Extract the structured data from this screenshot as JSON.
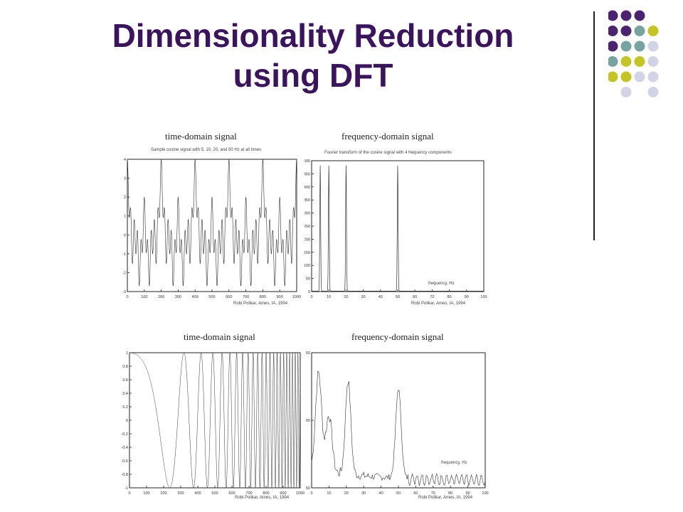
{
  "slide": {
    "title_line1": "Dimensionality Reduction",
    "title_line2": "using DFT",
    "colors": {
      "title": "#3b145e",
      "dot_purple": "#4a2470",
      "dot_teal": "#77a3a0",
      "dot_lime": "#c3c524",
      "dot_lavender": "#d3d3e6"
    }
  },
  "figures": {
    "top_left": {
      "title": "time-domain signal",
      "subtitle": "Sample cosine signal with 5, 10, 20, and 50 Hz at all times",
      "credit": "Robi Polikar, Ames, IA, 1994",
      "xticks": [
        "0",
        "100",
        "200",
        "300",
        "400",
        "500",
        "600",
        "700",
        "800",
        "900",
        "1000"
      ],
      "yticks": [
        "4",
        "3",
        "2",
        "1",
        "0",
        "-1",
        "-2",
        "-3"
      ]
    },
    "top_right": {
      "title": "frequency-domain signal",
      "subtitle": "Fourier transform of the cosine signal with 4 frequency components",
      "credit": "Robi Polikar, Ames, IA, 1994",
      "annotation": "frequency, Hz",
      "xticks": [
        "0",
        "10",
        "20",
        "30",
        "40",
        "50",
        "60",
        "70",
        "80",
        "90",
        "100"
      ],
      "yticks": [
        "500",
        "450",
        "400",
        "350",
        "300",
        "250",
        "200",
        "150",
        "100",
        "50",
        "0"
      ]
    },
    "bottom_left": {
      "title": "time-domain  signal",
      "credit": "Robi Polikar, Ames, IA, 1994",
      "xticks": [
        "0",
        "100",
        "200",
        "300",
        "400",
        "500",
        "600",
        "700",
        "800",
        "900",
        "1000"
      ],
      "yticks": [
        "1",
        "0.8",
        "0.6",
        "0.4",
        "0.2",
        "0",
        "-0.2",
        "-0.4",
        "-0.6",
        "-0.8",
        "-1"
      ]
    },
    "bottom_right": {
      "title": "frequency-domain  signal",
      "credit": "Robi Polikar, Ames, IA, 1994",
      "annotation": "frequency, Hz",
      "xticks": [
        "0",
        "10",
        "20",
        "30",
        "40",
        "50",
        "60",
        "70",
        "80",
        "90",
        "100"
      ],
      "yticks": [
        "150",
        "100",
        "50"
      ]
    }
  }
}
